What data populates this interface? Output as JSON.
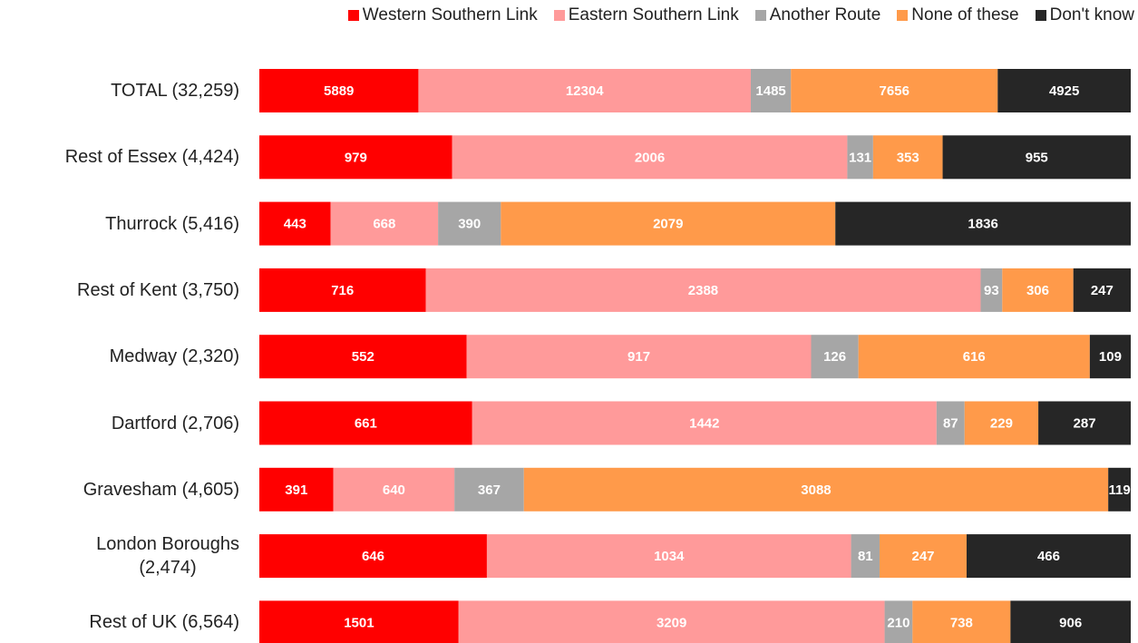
{
  "chart_data": {
    "type": "stacked_bar_100",
    "categories": [
      "TOTAL  (32,259)",
      "Rest of Essex (4,424)",
      "Thurrock (5,416)",
      "Rest of Kent (3,750)",
      "Medway (2,320)",
      "Dartford (2,706)",
      "Gravesham (4,605)",
      "London Boroughs\n(2,474)",
      "Rest of UK (6,564)"
    ],
    "series": [
      {
        "name": "Western Southern Link",
        "color": "#ff0000",
        "values": [
          5889,
          979,
          443,
          716,
          552,
          661,
          391,
          646,
          1501
        ]
      },
      {
        "name": "Eastern Southern Link",
        "color": "#ff9a9a",
        "values": [
          12304,
          2006,
          668,
          2388,
          917,
          1442,
          640,
          1034,
          3209
        ]
      },
      {
        "name": "Another Route",
        "color": "#a6a6a6",
        "values": [
          1485,
          131,
          390,
          93,
          126,
          87,
          367,
          81,
          210
        ]
      },
      {
        "name": "None of these",
        "color": "#ff9a4a",
        "values": [
          7656,
          353,
          2079,
          306,
          616,
          229,
          3088,
          247,
          738
        ]
      },
      {
        "name": "Don't know",
        "color": "#262626",
        "values": [
          4925,
          955,
          1836,
          247,
          109,
          287,
          119,
          466,
          906
        ]
      }
    ],
    "legend": "top"
  }
}
